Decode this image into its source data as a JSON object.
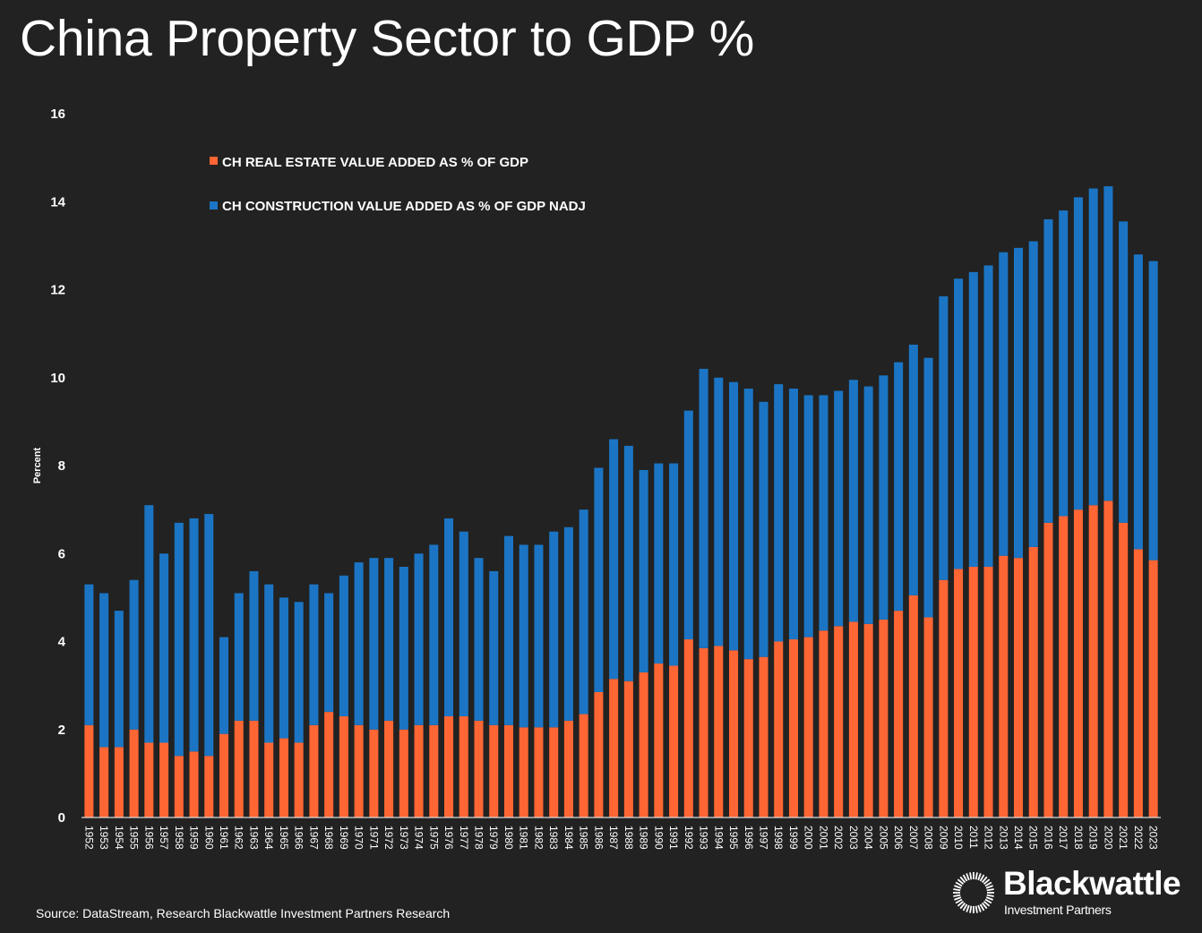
{
  "chart_data": {
    "type": "bar",
    "stacked": true,
    "title": "China Property Sector to GDP %",
    "xlabel": "",
    "ylabel": "Percent",
    "ylim": [
      0,
      16
    ],
    "yticks": [
      "0",
      "2",
      "4",
      "6",
      "8",
      "10",
      "12",
      "14",
      "16"
    ],
    "ytick_values": [
      0,
      2,
      4,
      6,
      8,
      10,
      12,
      14,
      16
    ],
    "grid": false,
    "legend_position": "top-left",
    "categories": [
      "1952",
      "1953",
      "1954",
      "1955",
      "1956",
      "1957",
      "1958",
      "1959",
      "1960",
      "1961",
      "1962",
      "1963",
      "1964",
      "1965",
      "1966",
      "1967",
      "1968",
      "1969",
      "1970",
      "1971",
      "1972",
      "1973",
      "1974",
      "1975",
      "1976",
      "1977",
      "1978",
      "1979",
      "1980",
      "1981",
      "1982",
      "1983",
      "1984",
      "1985",
      "1986",
      "1987",
      "1988",
      "1989",
      "1990",
      "1991",
      "1992",
      "1993",
      "1994",
      "1995",
      "1996",
      "1997",
      "1998",
      "1999",
      "2000",
      "2001",
      "2002",
      "2003",
      "2004",
      "2005",
      "2006",
      "2007",
      "2008",
      "2009",
      "2010",
      "2011",
      "2012",
      "2013",
      "2014",
      "2015",
      "2016",
      "2017",
      "2018",
      "2019",
      "2020",
      "2021",
      "2022",
      "2023"
    ],
    "series": [
      {
        "name": "CH REAL ESTATE VALUE ADDED AS % OF GDP",
        "color": "#FF6633",
        "values": [
          2.1,
          1.6,
          1.6,
          2.0,
          1.7,
          1.7,
          1.4,
          1.5,
          1.4,
          1.9,
          2.2,
          2.2,
          1.7,
          1.8,
          1.7,
          2.1,
          2.4,
          2.3,
          2.1,
          2.0,
          2.2,
          2.0,
          2.1,
          2.1,
          2.3,
          2.3,
          2.2,
          2.1,
          2.1,
          2.05,
          2.05,
          2.05,
          2.2,
          2.35,
          2.85,
          3.15,
          3.1,
          3.3,
          3.5,
          3.45,
          4.05,
          3.85,
          3.9,
          3.8,
          3.6,
          3.65,
          4.0,
          4.05,
          4.1,
          4.25,
          4.35,
          4.45,
          4.4,
          4.5,
          4.7,
          5.05,
          4.55,
          5.4,
          5.65,
          5.7,
          5.7,
          5.95,
          5.9,
          6.15,
          6.7,
          6.85,
          7.0,
          7.1,
          7.2,
          6.7,
          6.1,
          5.85
        ]
      },
      {
        "name": "CH CONSTRUCTION VALUE ADDED AS % OF GDP NADJ",
        "color": "#1B75C4",
        "values": [
          3.2,
          3.5,
          3.1,
          3.4,
          5.4,
          4.3,
          5.3,
          5.3,
          5.5,
          2.2,
          2.9,
          3.4,
          3.6,
          3.2,
          3.2,
          3.2,
          2.7,
          3.2,
          3.7,
          3.9,
          3.7,
          3.7,
          3.9,
          4.1,
          4.5,
          4.2,
          3.7,
          3.5,
          4.3,
          4.15,
          4.15,
          4.45,
          4.4,
          4.65,
          5.1,
          5.45,
          5.35,
          4.6,
          4.55,
          4.6,
          5.2,
          6.35,
          6.1,
          6.1,
          6.15,
          5.8,
          5.85,
          5.7,
          5.5,
          5.35,
          5.35,
          5.5,
          5.4,
          5.55,
          5.65,
          5.7,
          5.9,
          6.45,
          6.6,
          6.7,
          6.85,
          6.9,
          7.05,
          6.95,
          6.9,
          6.95,
          7.1,
          7.2,
          7.15,
          6.85,
          6.7,
          6.8
        ]
      }
    ]
  },
  "source": "Source: DataStream, Research Blackwattle Investment Partners Research",
  "logo": {
    "name": "Blackwattle",
    "subtitle": "Investment Partners"
  },
  "colors": {
    "background": "#222222",
    "axis": "#D9D9D9",
    "text": "#FFFFFF"
  }
}
